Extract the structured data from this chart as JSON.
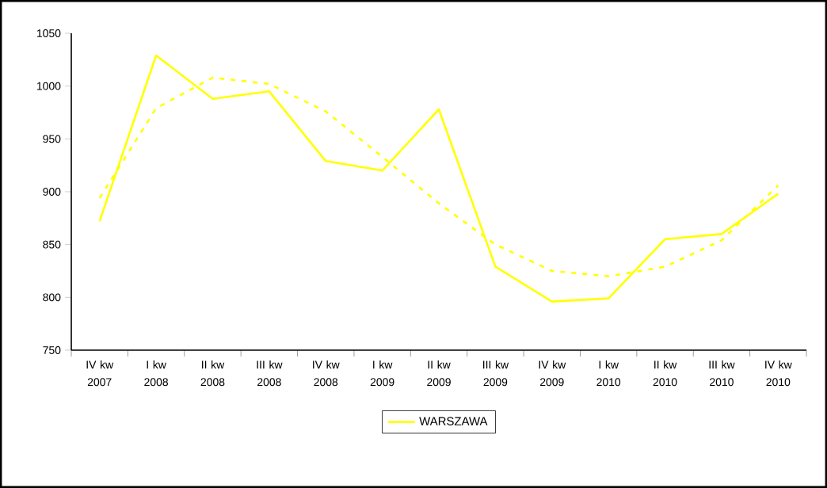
{
  "chart_data": {
    "type": "line",
    "categories": [
      "IV kw 2007",
      "I kw 2008",
      "II kw 2008",
      "III kw 2008",
      "IV kw 2008",
      "I kw 2009",
      "II kw 2009",
      "III kw 2009",
      "IV kw 2009",
      "I kw 2010",
      "II kw 2010",
      "III kw 2010",
      "IV kw 2010"
    ],
    "series": [
      {
        "name": "WARSZAWA",
        "color": "#ffff00",
        "line_style": "solid",
        "values": [
          872,
          1029,
          988,
          995,
          929,
          920,
          978,
          829,
          796,
          799,
          855,
          860,
          898
        ]
      },
      {
        "color": "#ffff00",
        "line_style": "dashed",
        "values": [
          894,
          979,
          1008,
          1002,
          976,
          933,
          889,
          850,
          825,
          820,
          829,
          854,
          906
        ]
      }
    ],
    "ylim": [
      750,
      1050
    ],
    "yticks": [
      750,
      800,
      850,
      900,
      950,
      1000,
      1050
    ],
    "legend": "bottom"
  }
}
